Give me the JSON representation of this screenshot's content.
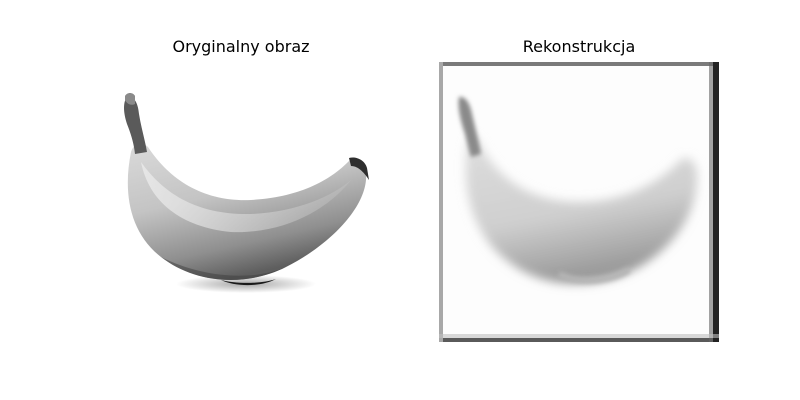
{
  "figure": {
    "panels": [
      {
        "title": "Oryginalny obraz",
        "image": "banana-grayscale-original"
      },
      {
        "title": "Rekonstrukcja",
        "image": "banana-grayscale-reconstruction"
      }
    ]
  }
}
